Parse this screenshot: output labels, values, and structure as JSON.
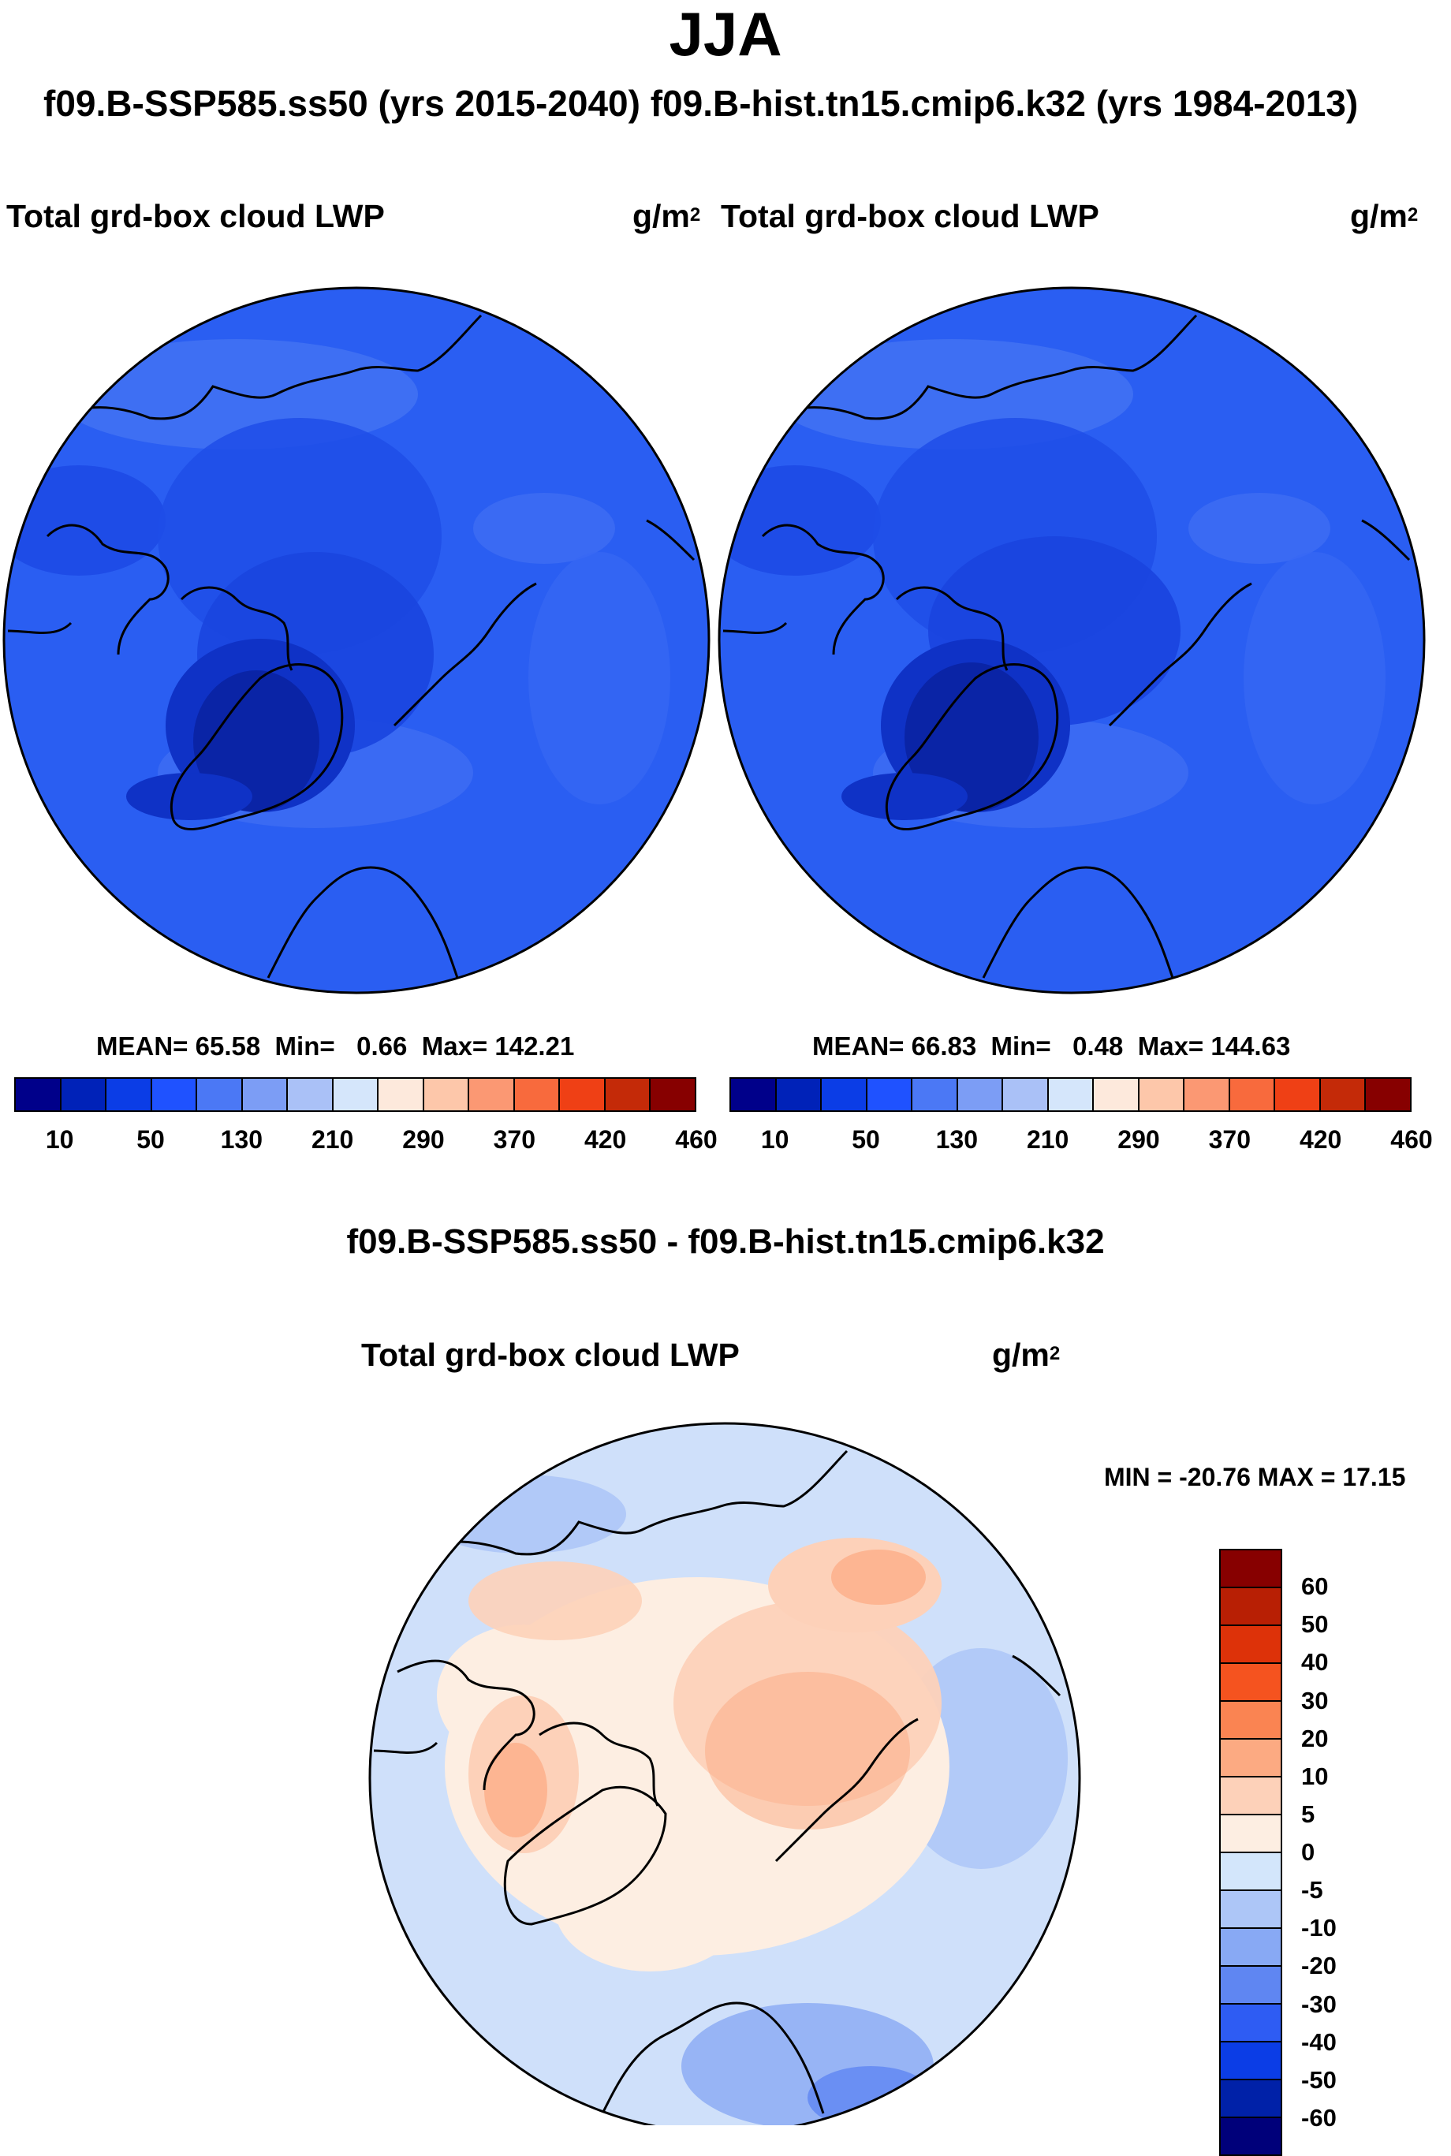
{
  "season": "JJA",
  "runs_title": "f09.B-SSP585.ss50 (yrs 2015-2040)  f09.B-hist.tn15.cmip6.k32 (yrs 1984-2013)",
  "panels": [
    {
      "title": "Total grd-box cloud LWP",
      "units": "g/m",
      "units_exp": "2",
      "mean_label": "MEAN=",
      "mean": "65.58",
      "min_label": "Min=",
      "min": "0.66",
      "max_label": "Max=",
      "max": "142.21"
    },
    {
      "title": "Total grd-box cloud LWP",
      "units": "g/m",
      "units_exp": "2",
      "mean_label": "MEAN=",
      "mean": "66.83",
      "min_label": "Min=",
      "min": "0.48",
      "max_label": "Max=",
      "max": "144.63"
    }
  ],
  "abs_colorbar": {
    "colors": [
      "#00008a",
      "#0022b8",
      "#0b3de6",
      "#1f52ff",
      "#4b78f5",
      "#7c9df5",
      "#aac1f7",
      "#d5e6fb",
      "#fde9dc",
      "#fdc7aa",
      "#fb9873",
      "#f86a3d",
      "#ef4015",
      "#c42a08",
      "#870000"
    ],
    "labels": [
      "10",
      "50",
      "130",
      "210",
      "290",
      "370",
      "420",
      "460"
    ]
  },
  "diff": {
    "title": "f09.B-SSP585.ss50 - f09.B-hist.tn15.cmip6.k32",
    "panel_title": "Total grd-box cloud LWP",
    "units": "g/m",
    "units_exp": "2",
    "minmax_text": "MIN = -20.76 MAX =  17.15"
  },
  "diff_colorbar": {
    "colors": [
      "#870000",
      "#b81f04",
      "#dd3209",
      "#f5531f",
      "#fa8452",
      "#fcaa82",
      "#fdd1b9",
      "#fdeee2",
      "#d3e6fb",
      "#adc6f7",
      "#88a9f4",
      "#5f86f2",
      "#2e5cf3",
      "#0b3de6",
      "#0021a8",
      "#00007a"
    ],
    "labels": [
      "60",
      "50",
      "40",
      "30",
      "20",
      "10",
      "5",
      "0",
      "-5",
      "-10",
      "-20",
      "-30",
      "-40",
      "-50",
      "-60"
    ]
  },
  "colors": {
    "map1_base": "#2a5ef2",
    "map2_base": "#2a5ef2",
    "diff_base": "#cfe0fa",
    "coastline": "#000000"
  }
}
